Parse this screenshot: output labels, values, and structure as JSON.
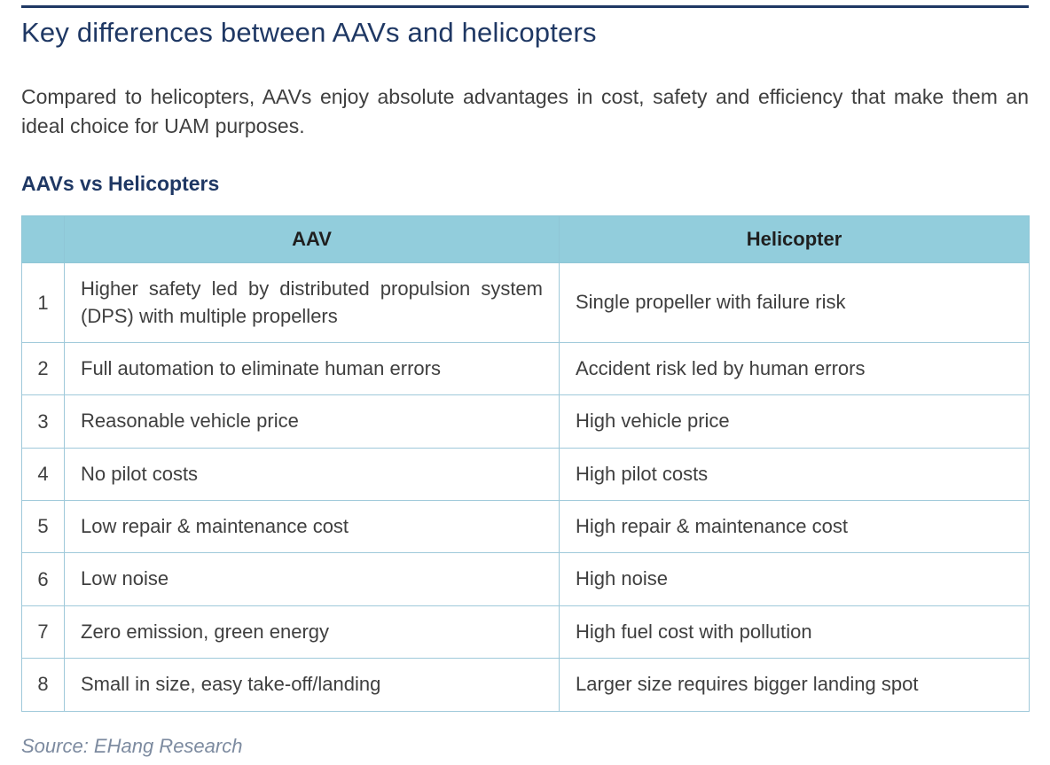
{
  "page": {
    "title": "Key differences between AAVs and helicopters",
    "intro": "Compared to helicopters, AAVs enjoy absolute advantages in cost, safety and efficiency that make them an ideal choice for UAM purposes.",
    "table_heading": "AAVs vs Helicopters",
    "source": "Source: EHang Research"
  },
  "colors": {
    "accent_navy": "#1F3864",
    "table_header_bg": "#92CDDC",
    "table_border": "#9fc9da",
    "body_text": "#3f3f3f",
    "source_text": "#7d8ba0"
  },
  "table": {
    "columns": [
      "",
      "AAV",
      "Helicopter"
    ],
    "rows": [
      {
        "num": "1",
        "aav": "Higher safety led by distributed propulsion system (DPS) with multiple propellers",
        "helicopter": "Single propeller with failure risk"
      },
      {
        "num": "2",
        "aav": "Full automation to eliminate human errors",
        "helicopter": "Accident risk led by human errors"
      },
      {
        "num": "3",
        "aav": "Reasonable vehicle price",
        "helicopter": "High vehicle price"
      },
      {
        "num": "4",
        "aav": "No pilot costs",
        "helicopter": "High pilot costs"
      },
      {
        "num": "5",
        "aav": "Low repair & maintenance cost",
        "helicopter": "High repair & maintenance cost"
      },
      {
        "num": "6",
        "aav": "Low noise",
        "helicopter": "High noise"
      },
      {
        "num": "7",
        "aav": "Zero emission, green energy",
        "helicopter": "High fuel cost with pollution"
      },
      {
        "num": "8",
        "aav": "Small in size, easy take-off/landing",
        "helicopter": "Larger size requires bigger landing spot"
      }
    ]
  }
}
